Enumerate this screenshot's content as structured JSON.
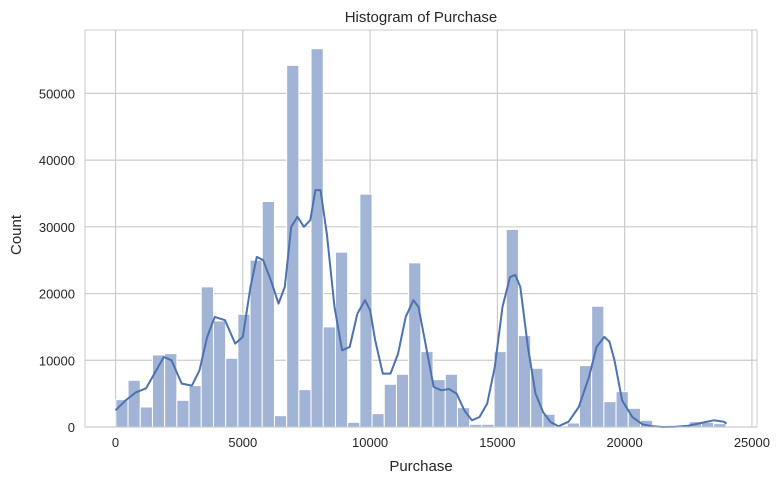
{
  "chart_data": {
    "type": "bar",
    "title": "Histogram of Purchase",
    "xlabel": "Purchase",
    "ylabel": "Count",
    "xlim": [
      -1200,
      25200
    ],
    "ylim": [
      0,
      59500
    ],
    "xticks": [
      0,
      5000,
      10000,
      15000,
      20000,
      25000
    ],
    "xtick_labels": [
      "0",
      "5000",
      "10000",
      "15000",
      "20000",
      "25000"
    ],
    "yticks": [
      0,
      10000,
      20000,
      30000,
      40000,
      50000
    ],
    "ytick_labels": [
      "0",
      "10000",
      "20000",
      "30000",
      "40000",
      "50000"
    ],
    "grid": true,
    "bin_start": 12,
    "bin_width": 479.3,
    "values": [
      4100,
      7000,
      3000,
      10800,
      11000,
      4000,
      6200,
      21000,
      15900,
      10300,
      16900,
      25000,
      33800,
      1700,
      54200,
      5600,
      56700,
      15000,
      26200,
      700,
      34900,
      2000,
      6400,
      7900,
      24600,
      11300,
      7100,
      7900,
      2900,
      400,
      400,
      11300,
      29600,
      13700,
      8800,
      1900,
      0,
      600,
      9200,
      18100,
      3800,
      5300,
      2800,
      1000,
      0,
      0,
      0,
      800,
      700,
      500
    ],
    "kde": {
      "x": [
        0,
        400,
        800,
        1200,
        1600,
        1900,
        2200,
        2600,
        3000,
        3300,
        3600,
        3900,
        4300,
        4700,
        5000,
        5300,
        5550,
        5800,
        6100,
        6400,
        6650,
        6900,
        7150,
        7400,
        7650,
        7850,
        8050,
        8300,
        8600,
        8900,
        9200,
        9500,
        9800,
        10000,
        10200,
        10500,
        10800,
        11100,
        11400,
        11700,
        11900,
        12200,
        12500,
        12800,
        13100,
        13400,
        13700,
        14000,
        14300,
        14600,
        14900,
        15200,
        15500,
        15700,
        15900,
        16200,
        16500,
        16800,
        17100,
        17400,
        17800,
        18200,
        18600,
        18900,
        19200,
        19400,
        19600,
        19900,
        20300,
        20700,
        21100,
        21500,
        22000,
        22500,
        23000,
        23500,
        23900,
        24000
      ],
      "y": [
        2500,
        4000,
        5200,
        5800,
        8500,
        10500,
        10000,
        6500,
        6200,
        8500,
        13500,
        16500,
        16000,
        12500,
        13500,
        21000,
        25500,
        25000,
        22000,
        18500,
        21000,
        30000,
        31500,
        30000,
        31000,
        35500,
        35500,
        29000,
        18000,
        11500,
        12000,
        17000,
        19000,
        17500,
        13000,
        8000,
        8000,
        11000,
        16500,
        19000,
        18000,
        12000,
        6000,
        5500,
        5700,
        5000,
        2500,
        1000,
        1500,
        3500,
        9000,
        18000,
        22500,
        22800,
        21000,
        12000,
        5000,
        2200,
        700,
        100,
        800,
        3000,
        7500,
        12000,
        13500,
        12800,
        10000,
        4000,
        1500,
        400,
        100,
        0,
        50,
        200,
        600,
        1000,
        800,
        500
      ]
    },
    "bar_color": "#a1b4d6",
    "line_color": "#4c72b0",
    "grid_color": "#cccccc"
  }
}
